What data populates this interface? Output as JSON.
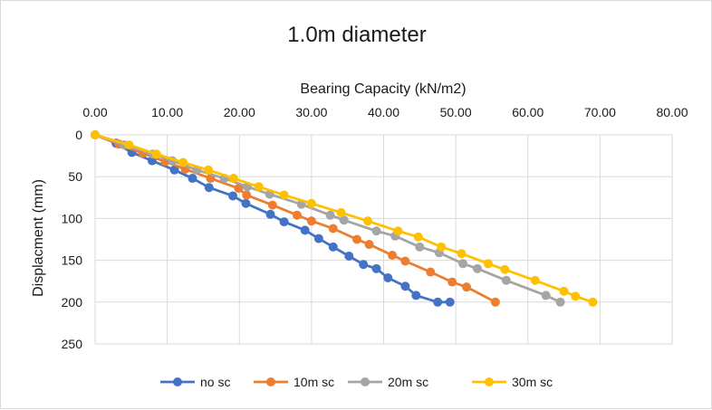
{
  "chart_data": {
    "type": "line",
    "title": "1.0m diameter",
    "xlabel": "Bearing Capacity (kN/m2)",
    "ylabel": "Displacment (mm)",
    "xlim": [
      0,
      80
    ],
    "ylim": [
      0,
      250
    ],
    "y_inverted": true,
    "x_axis_position": "top",
    "x_tick_values": [
      0,
      10,
      20,
      30,
      40,
      50,
      60,
      70,
      80
    ],
    "x_tick_labels": [
      "0.00",
      "10.00",
      "20.00",
      "30.00",
      "40.00",
      "50.00",
      "60.00",
      "70.00",
      "80.00"
    ],
    "y_tick_values": [
      0,
      50,
      100,
      150,
      200,
      250
    ],
    "y_tick_labels": [
      "0",
      "50",
      "100",
      "150",
      "200",
      "250"
    ],
    "grid": true,
    "legend_position": "bottom",
    "series": [
      {
        "name": "no sc",
        "color": "#4472c4",
        "x": [
          0,
          2.9,
          5.1,
          7.9,
          11.0,
          13.5,
          15.8,
          19.1,
          20.9,
          24.3,
          26.2,
          29.1,
          31.0,
          33.0,
          35.2,
          37.2,
          39.0,
          40.6,
          43.0,
          44.5,
          47.5,
          49.2
        ],
        "y": [
          0,
          10,
          21,
          31,
          42,
          52,
          63,
          73,
          82,
          95,
          104,
          114,
          124,
          134,
          145,
          155,
          160,
          171,
          181,
          192,
          200,
          200
        ]
      },
      {
        "name": "10m sc",
        "color": "#ed7d31",
        "x": [
          0,
          3.3,
          6.6,
          9.7,
          12.5,
          16.0,
          19.9,
          21.0,
          24.6,
          28.0,
          30.0,
          33.0,
          36.3,
          38.0,
          41.2,
          43.0,
          46.5,
          49.5,
          51.5,
          55.5
        ],
        "y": [
          0,
          11,
          22,
          32,
          41,
          52,
          64,
          72,
          84,
          96,
          103,
          112,
          125,
          131,
          144,
          151,
          164,
          176,
          182,
          200
        ]
      },
      {
        "name": "20m sc",
        "color": "#a5a5a5",
        "x": [
          0,
          4.0,
          8.0,
          10.7,
          14.1,
          17.9,
          21.1,
          24.2,
          28.6,
          32.6,
          34.5,
          39.0,
          41.6,
          45.0,
          47.7,
          51.0,
          53.0,
          57.0,
          62.5,
          64.5
        ],
        "y": [
          0,
          12,
          23,
          31,
          42,
          52,
          62,
          71,
          83,
          96,
          102,
          115,
          121,
          134,
          141,
          154,
          160,
          174,
          192,
          200
        ]
      },
      {
        "name": "30m sc",
        "color": "#ffc000",
        "x": [
          0,
          4.7,
          8.5,
          12.2,
          15.7,
          19.2,
          22.7,
          26.2,
          30.0,
          34.1,
          37.8,
          42.0,
          44.8,
          48.0,
          50.8,
          54.5,
          56.8,
          61.0,
          65.0,
          66.6,
          69.0
        ],
        "y": [
          0,
          12,
          23,
          33,
          42,
          52,
          62,
          72,
          82,
          93,
          103,
          115,
          122,
          134,
          142,
          154,
          161,
          174,
          187,
          193,
          200
        ]
      }
    ]
  }
}
